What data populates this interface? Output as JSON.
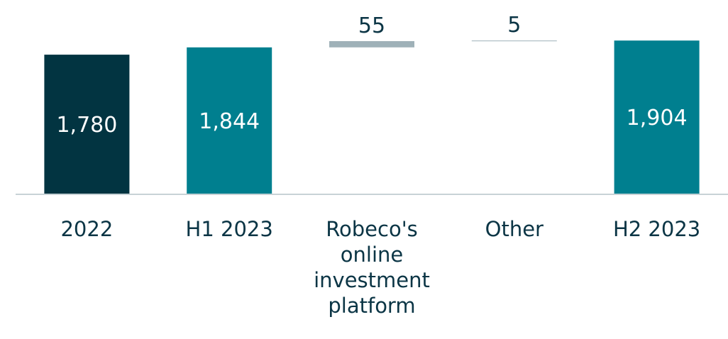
{
  "chart_data": {
    "type": "waterfall",
    "categories": [
      "2022",
      "H1 2023",
      "Robeco's online investment platform",
      "Other",
      "H2 2023"
    ],
    "values": [
      1780,
      1844,
      55,
      5,
      1904
    ],
    "value_labels": [
      "1,780",
      "1,844",
      "55",
      "5",
      "1,904"
    ],
    "measures": [
      "total",
      "total",
      "relative",
      "relative",
      "total"
    ],
    "colors": [
      "#023441",
      "#007f8f",
      "#9fb1b8",
      "#9fb1b8",
      "#007f8f"
    ],
    "ylim": [
      560,
      2260
    ]
  }
}
